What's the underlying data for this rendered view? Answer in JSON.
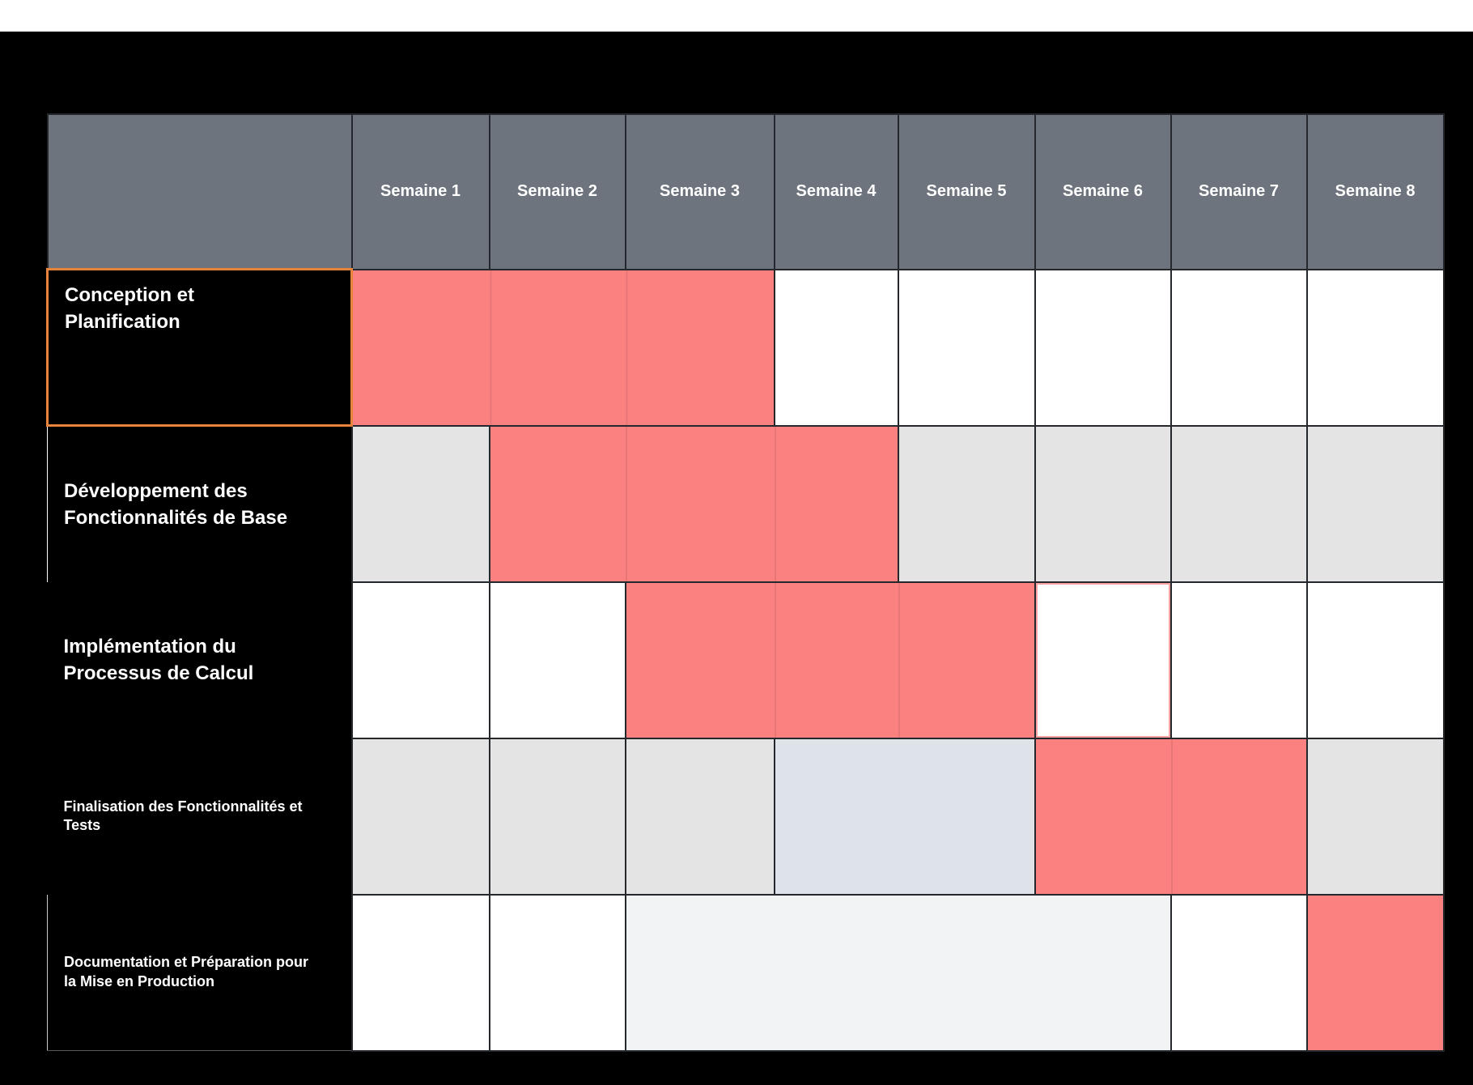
{
  "page": {
    "background": "#000000",
    "top_bar_color": "#ffffff"
  },
  "chart_data": {
    "type": "table",
    "subtype": "gantt",
    "columns": [
      "Semaine 1",
      "Semaine 2",
      "Semaine 3",
      "Semaine 4",
      "Semaine 5",
      "Semaine 6",
      "Semaine 7",
      "Semaine 8"
    ],
    "colors": {
      "bar": "#fb8181",
      "header_bg": "#6d747d",
      "header_text": "#ffffff",
      "shaded": "#e4e4e4",
      "shaded_blue": "#dee3e9",
      "shaded_faint": "#f1f3f4",
      "empty": "#ffffff",
      "selected_outline": "#e8833b",
      "cell_outline_pink": "#f9a2a2",
      "grid_line": "#24272b",
      "label_bg": "#000000",
      "label_text": "#ffffff"
    },
    "tasks": [
      {
        "name": "Conception et Planification",
        "name_lines": [
          "Conception et",
          "Planification"
        ],
        "bar_start_week": 1,
        "bar_end_week": 3,
        "selected": true,
        "cells": [
          {
            "span": 3,
            "style": "bar"
          },
          {
            "span": 1,
            "style": "empty"
          },
          {
            "span": 1,
            "style": "empty"
          },
          {
            "span": 1,
            "style": "empty"
          },
          {
            "span": 1,
            "style": "empty"
          },
          {
            "span": 1,
            "style": "empty"
          }
        ]
      },
      {
        "name": "Développement des Fonctionnalités de Base",
        "name_lines": [
          "Développement des",
          "Fonctionnalités de Base"
        ],
        "bar_start_week": 2,
        "bar_end_week": 4,
        "selected": false,
        "cells": [
          {
            "span": 1,
            "style": "shaded"
          },
          {
            "span": 3,
            "style": "bar"
          },
          {
            "span": 1,
            "style": "shaded"
          },
          {
            "span": 1,
            "style": "shaded"
          },
          {
            "span": 1,
            "style": "shaded"
          },
          {
            "span": 1,
            "style": "shaded"
          }
        ]
      },
      {
        "name": "Implémentation du Processus de Calcul",
        "name_lines": [
          "Implémentation du",
          "Processus de Calcul"
        ],
        "bar_start_week": 3,
        "bar_end_week": 5,
        "selected": false,
        "cells": [
          {
            "span": 1,
            "style": "empty"
          },
          {
            "span": 1,
            "style": "empty"
          },
          {
            "span": 3,
            "style": "bar"
          },
          {
            "span": 1,
            "style": "empty_outlined"
          },
          {
            "span": 1,
            "style": "empty"
          },
          {
            "span": 1,
            "style": "empty"
          }
        ]
      },
      {
        "name": "Finalisation des Fonctionnalités et Tests",
        "name_lines": [
          "Finalisation des Fonctionnalités et",
          "Tests"
        ],
        "bar_start_week": 6,
        "bar_end_week": 7,
        "selected": false,
        "cells": [
          {
            "span": 1,
            "style": "shaded"
          },
          {
            "span": 1,
            "style": "shaded"
          },
          {
            "span": 1,
            "style": "shaded"
          },
          {
            "span": 2,
            "style": "shaded_blue"
          },
          {
            "span": 2,
            "style": "bar"
          },
          {
            "span": 1,
            "style": "shaded"
          }
        ]
      },
      {
        "name": "Documentation et Préparation pour la Mise en Production",
        "name_lines": [
          "Documentation et Préparation pour",
          "la Mise en Production"
        ],
        "bar_start_week": 8,
        "bar_end_week": 8,
        "selected": false,
        "cells": [
          {
            "span": 1,
            "style": "empty"
          },
          {
            "span": 1,
            "style": "empty"
          },
          {
            "span": 4,
            "style": "shaded_faint"
          },
          {
            "span": 1,
            "style": "empty"
          },
          {
            "span": 1,
            "style": "bar"
          }
        ]
      }
    ]
  }
}
